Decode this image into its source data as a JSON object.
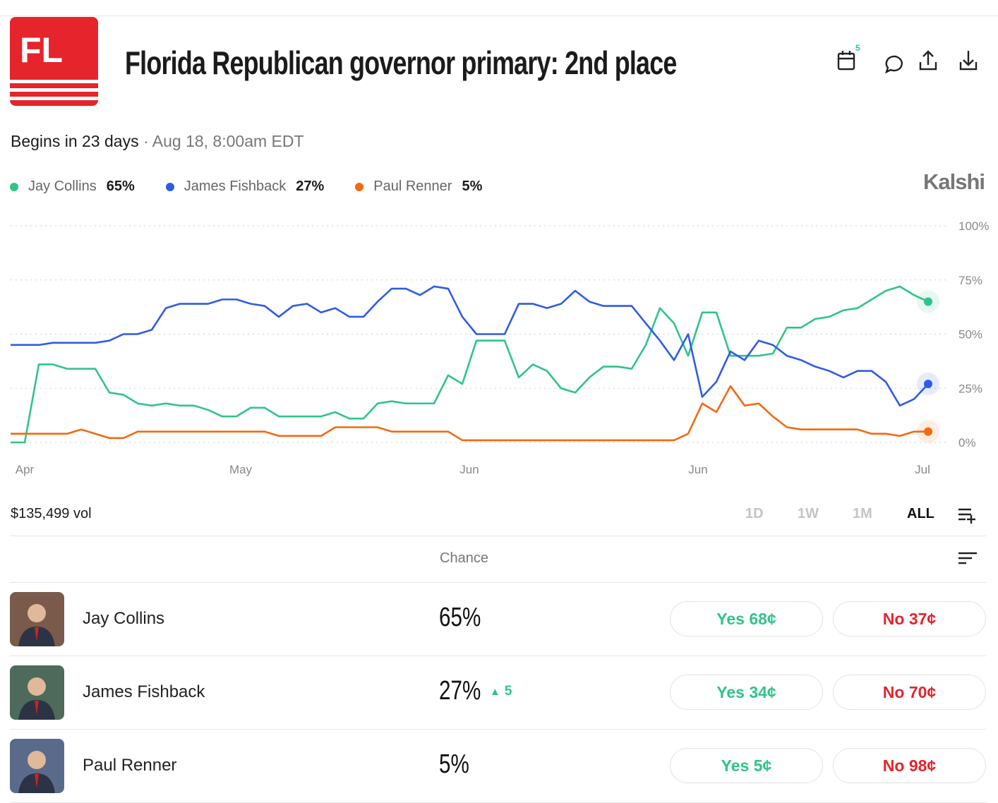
{
  "header": {
    "logo": "FL",
    "title": "Florida Republican governor primary: 2nd place",
    "badge": "5"
  },
  "status": {
    "begins": "Begins in 23 days",
    "date": "· Aug 18, 8:00am EDT"
  },
  "brand": "Kalshi",
  "chart_data": {
    "type": "line",
    "x": [
      0,
      1,
      2,
      3,
      4,
      5,
      6,
      7,
      8,
      9,
      10,
      11,
      12,
      13,
      14,
      15,
      16,
      17,
      18,
      19,
      20,
      21,
      22,
      23,
      24,
      25,
      26,
      27,
      28,
      29,
      30,
      31,
      32,
      33,
      34,
      35,
      36,
      37,
      38,
      39,
      40,
      41,
      42,
      43,
      44,
      45,
      46,
      47,
      48,
      49,
      50,
      51,
      52,
      53,
      54,
      55,
      56,
      57,
      58,
      59,
      60,
      61,
      62,
      63,
      64,
      65
    ],
    "xlim": [
      0,
      65
    ],
    "xticks": [
      {
        "value": 1,
        "label": "Apr"
      },
      {
        "value": 16.3,
        "label": "May"
      },
      {
        "value": 32.5,
        "label": "Jun"
      },
      {
        "value": 48.7,
        "label": "Jun"
      },
      {
        "value": 64.6,
        "label": "Jul"
      }
    ],
    "ylim": [
      0,
      100
    ],
    "yticks": [
      {
        "value": 0,
        "label": "0%"
      },
      {
        "value": 25,
        "label": "25%"
      },
      {
        "value": 50,
        "label": "50%"
      },
      {
        "value": 75,
        "label": "75%"
      },
      {
        "value": 100,
        "label": "100%"
      }
    ],
    "grid": true,
    "series": [
      {
        "name": "Jay Collins",
        "chance": "65%",
        "color": "#2fc48a",
        "values": [
          0,
          0,
          36,
          36,
          34,
          34,
          34,
          23,
          22,
          18,
          17,
          18,
          17,
          17,
          15,
          12,
          12,
          16,
          16,
          12,
          12,
          12,
          12,
          14,
          11,
          11,
          18,
          19,
          18,
          18,
          18,
          31,
          27,
          47,
          47,
          47,
          30,
          36,
          33,
          25,
          23,
          30,
          35,
          35,
          34,
          45,
          62,
          55,
          40,
          60,
          60,
          40,
          40,
          40,
          41,
          53,
          53,
          57,
          58,
          61,
          62,
          66,
          70,
          72,
          68,
          65
        ]
      },
      {
        "name": "James Fishback",
        "chance": "27%",
        "color": "#2f5ce6",
        "values": [
          45,
          45,
          45,
          46,
          46,
          46,
          46,
          47,
          50,
          50,
          52,
          62,
          64,
          64,
          64,
          66,
          66,
          64,
          63,
          58,
          63,
          64,
          60,
          62,
          58,
          58,
          65,
          71,
          71,
          68,
          72,
          71,
          58,
          50,
          50,
          50,
          64,
          64,
          62,
          64,
          70,
          65,
          63,
          63,
          63,
          55,
          47,
          38,
          50,
          21,
          28,
          42,
          38,
          47,
          45,
          40,
          38,
          35,
          33,
          30,
          33,
          33,
          28,
          17,
          20,
          27
        ]
      },
      {
        "name": "Paul Renner",
        "chance": "5%",
        "color": "#f26a12",
        "values": [
          4,
          4,
          4,
          4,
          4,
          6,
          4,
          2,
          2,
          5,
          5,
          5,
          5,
          5,
          5,
          5,
          5,
          5,
          5,
          3,
          3,
          3,
          3,
          7,
          7,
          7,
          7,
          5,
          5,
          5,
          5,
          5,
          1,
          1,
          1,
          1,
          1,
          1,
          1,
          1,
          1,
          1,
          1,
          1,
          1,
          1,
          1,
          1,
          4,
          18,
          14,
          26,
          17,
          18,
          12,
          7,
          6,
          6,
          6,
          6,
          6,
          4,
          4,
          3,
          5,
          5
        ]
      }
    ]
  },
  "controls": {
    "volume": "$135,499 vol",
    "ranges": [
      "1D",
      "1W",
      "1M",
      "ALL"
    ]
  },
  "table": {
    "header": "Chance",
    "rows": [
      {
        "name": "Jay Collins",
        "chance": "65%",
        "yes": "Yes 68¢",
        "no": "No 37¢"
      },
      {
        "name": "James Fishback",
        "chance": "27%",
        "change": "5",
        "yes": "Yes 34¢",
        "no": "No 70¢"
      },
      {
        "name": "Paul Renner",
        "chance": "5%",
        "yes": "Yes 5¢",
        "no": "No 98¢"
      }
    ]
  }
}
